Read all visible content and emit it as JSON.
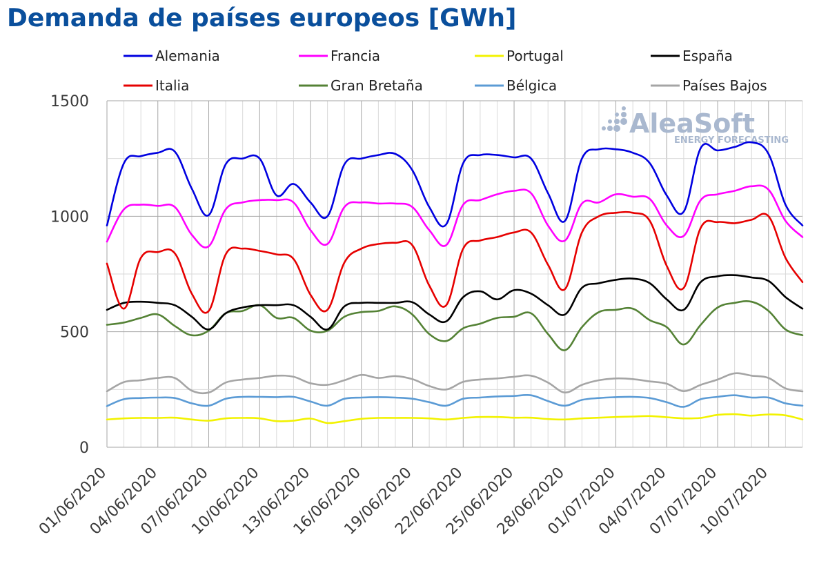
{
  "title": "Demanda de países europeos [GWh]",
  "watermark": {
    "brand": "AleaSoft",
    "tagline": "ENERGY FORECASTING",
    "color": "#a9b8cf"
  },
  "chart_data": {
    "type": "line",
    "title": "Demanda de países europeos [GWh]",
    "xlabel": "",
    "ylabel": "",
    "ylim": [
      0,
      1500
    ],
    "yticks": [
      0,
      500,
      1000,
      1500
    ],
    "grid": true,
    "legend": "top",
    "x": [
      "01/06/2020",
      "02/06/2020",
      "03/06/2020",
      "04/06/2020",
      "05/06/2020",
      "06/06/2020",
      "07/06/2020",
      "08/06/2020",
      "09/06/2020",
      "10/06/2020",
      "11/06/2020",
      "12/06/2020",
      "13/06/2020",
      "14/06/2020",
      "15/06/2020",
      "16/06/2020",
      "17/06/2020",
      "18/06/2020",
      "19/06/2020",
      "20/06/2020",
      "21/06/2020",
      "22/06/2020",
      "23/06/2020",
      "24/06/2020",
      "25/06/2020",
      "26/06/2020",
      "27/06/2020",
      "28/06/2020",
      "29/06/2020",
      "30/06/2020",
      "01/07/2020",
      "02/07/2020",
      "03/07/2020",
      "04/07/2020",
      "05/07/2020",
      "06/07/2020",
      "07/07/2020",
      "08/07/2020",
      "09/07/2020",
      "10/07/2020",
      "11/07/2020",
      "12/07/2020"
    ],
    "xtick_labels": [
      "01/06/2020",
      "04/06/2020",
      "07/06/2020",
      "10/06/2020",
      "13/06/2020",
      "16/06/2020",
      "19/06/2020",
      "22/06/2020",
      "25/06/2020",
      "28/06/2020",
      "01/07/2020",
      "04/07/2020",
      "07/07/2020",
      "10/07/2020"
    ],
    "series": [
      {
        "name": "Alemania",
        "color": "#0000e0",
        "values": [
          960,
          1230,
          1260,
          1275,
          1280,
          1120,
          1005,
          1225,
          1250,
          1250,
          1090,
          1140,
          1060,
          1000,
          1225,
          1250,
          1265,
          1270,
          1200,
          1040,
          965,
          1230,
          1265,
          1265,
          1255,
          1250,
          1100,
          980,
          1250,
          1290,
          1290,
          1275,
          1230,
          1090,
          1020,
          1295,
          1285,
          1300,
          1320,
          1270,
          1050,
          960
        ]
      },
      {
        "name": "Francia",
        "color": "#ff00ff",
        "values": [
          890,
          1030,
          1050,
          1045,
          1040,
          920,
          870,
          1030,
          1060,
          1070,
          1070,
          1060,
          940,
          880,
          1040,
          1060,
          1055,
          1055,
          1040,
          940,
          875,
          1050,
          1070,
          1095,
          1110,
          1100,
          960,
          895,
          1055,
          1060,
          1095,
          1085,
          1075,
          960,
          915,
          1070,
          1095,
          1110,
          1130,
          1115,
          980,
          910
        ]
      },
      {
        "name": "Portugal",
        "color": "#f2f200",
        "values": [
          120,
          125,
          127,
          127,
          128,
          120,
          115,
          125,
          127,
          125,
          113,
          115,
          124,
          105,
          113,
          123,
          127,
          127,
          127,
          125,
          120,
          127,
          131,
          131,
          128,
          128,
          122,
          120,
          125,
          128,
          131,
          133,
          135,
          130,
          125,
          127,
          140,
          143,
          137,
          142,
          138,
          120
        ]
      },
      {
        "name": "España",
        "color": "#000000",
        "values": [
          595,
          625,
          630,
          625,
          615,
          565,
          510,
          580,
          605,
          615,
          615,
          615,
          565,
          510,
          610,
          625,
          625,
          625,
          628,
          575,
          545,
          650,
          675,
          640,
          680,
          665,
          615,
          575,
          690,
          710,
          725,
          730,
          710,
          640,
          595,
          715,
          740,
          745,
          735,
          720,
          650,
          600
        ]
      },
      {
        "name": "Italia",
        "color": "#e60000",
        "values": [
          795,
          600,
          820,
          845,
          840,
          665,
          590,
          835,
          860,
          850,
          835,
          815,
          660,
          595,
          800,
          860,
          880,
          885,
          875,
          700,
          615,
          860,
          895,
          910,
          930,
          930,
          790,
          685,
          930,
          1000,
          1015,
          1015,
          980,
          785,
          690,
          950,
          975,
          970,
          985,
          1000,
          820,
          715
        ]
      },
      {
        "name": "Gran Bretaña",
        "color": "#548235",
        "values": [
          530,
          540,
          560,
          575,
          525,
          485,
          505,
          580,
          590,
          615,
          560,
          560,
          505,
          505,
          565,
          585,
          590,
          610,
          575,
          490,
          460,
          515,
          535,
          560,
          565,
          580,
          490,
          420,
          520,
          585,
          595,
          600,
          550,
          520,
          445,
          530,
          605,
          625,
          630,
          590,
          510,
          485
        ]
      },
      {
        "name": "Bélgica",
        "color": "#5b9bd5",
        "values": [
          178,
          208,
          213,
          215,
          213,
          190,
          180,
          210,
          218,
          218,
          217,
          218,
          198,
          180,
          210,
          215,
          217,
          215,
          210,
          195,
          180,
          210,
          215,
          220,
          222,
          225,
          200,
          180,
          205,
          213,
          217,
          218,
          213,
          195,
          175,
          208,
          218,
          225,
          215,
          215,
          190,
          180
        ]
      },
      {
        "name": "Países Bajos",
        "color": "#a5a5a5",
        "values": [
          242,
          282,
          290,
          300,
          300,
          245,
          237,
          280,
          293,
          300,
          310,
          305,
          277,
          270,
          290,
          313,
          300,
          308,
          295,
          265,
          250,
          283,
          293,
          298,
          305,
          310,
          280,
          237,
          270,
          290,
          298,
          295,
          285,
          275,
          243,
          270,
          293,
          320,
          310,
          300,
          255,
          242
        ]
      }
    ]
  }
}
